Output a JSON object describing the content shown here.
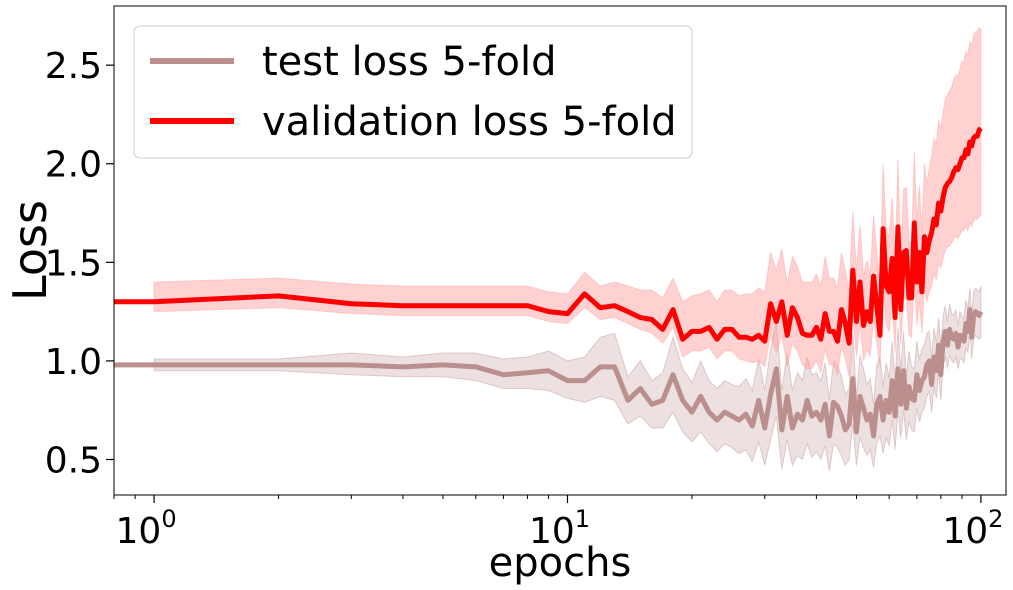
{
  "chart_data": {
    "type": "line",
    "title": "",
    "xlabel": "epochs",
    "ylabel": "Loss",
    "xscale": "log",
    "xlim": [
      0.8,
      115
    ],
    "ylim": [
      0.32,
      2.8
    ],
    "x_major_ticks": [
      {
        "value": 1,
        "base": "10",
        "exp": "0"
      },
      {
        "value": 10,
        "base": "10",
        "exp": "1"
      },
      {
        "value": 100,
        "base": "10",
        "exp": "2"
      }
    ],
    "y_ticks": [
      {
        "value": 0.5,
        "label": "0.5"
      },
      {
        "value": 1.0,
        "label": "1.0"
      },
      {
        "value": 1.5,
        "label": "1.5"
      },
      {
        "value": 2.0,
        "label": "2.0"
      },
      {
        "value": 2.5,
        "label": "2.5"
      }
    ],
    "grid": false,
    "legend_position": "top-left",
    "x": [
      1,
      2,
      3,
      4,
      5,
      6,
      7,
      8,
      9,
      10,
      11,
      12,
      13,
      14,
      15,
      16,
      17,
      18,
      19,
      20,
      21,
      22,
      23,
      24,
      25,
      26,
      27,
      28,
      29,
      30,
      31,
      32,
      33,
      34,
      35,
      36,
      37,
      38,
      39,
      40,
      41,
      42,
      43,
      44,
      45,
      46,
      47,
      48,
      49,
      50,
      51,
      52,
      53,
      54,
      55,
      56,
      57,
      58,
      59,
      60,
      61,
      62,
      63,
      64,
      65,
      66,
      67,
      68,
      69,
      70,
      71,
      72,
      73,
      74,
      75,
      76,
      77,
      78,
      79,
      80,
      81,
      82,
      83,
      84,
      85,
      86,
      87,
      88,
      89,
      90,
      91,
      92,
      93,
      94,
      95,
      96,
      97,
      98,
      99,
      100
    ],
    "series": [
      {
        "name": "test loss 5-fold",
        "color": "#bc8f8f",
        "band_color": "#bc8f8f",
        "values": [
          0.98,
          0.98,
          0.98,
          0.97,
          0.98,
          0.97,
          0.93,
          0.94,
          0.95,
          0.9,
          0.9,
          0.97,
          0.97,
          0.8,
          0.86,
          0.78,
          0.8,
          0.93,
          0.8,
          0.74,
          0.82,
          0.74,
          0.7,
          0.74,
          0.72,
          0.7,
          0.73,
          0.67,
          0.8,
          0.66,
          0.83,
          0.96,
          0.65,
          0.82,
          0.66,
          0.73,
          0.7,
          0.8,
          0.72,
          0.74,
          0.7,
          0.78,
          0.62,
          0.79,
          0.77,
          0.72,
          0.65,
          0.68,
          0.91,
          0.64,
          0.82,
          0.76,
          0.7,
          0.73,
          0.62,
          0.78,
          0.82,
          0.7,
          0.8,
          0.74,
          0.9,
          0.72,
          0.96,
          0.78,
          0.95,
          0.76,
          0.87,
          0.81,
          0.8,
          0.93,
          0.85,
          0.9,
          0.92,
          0.98,
          1.0,
          0.88,
          1.02,
          0.95,
          1.08,
          0.93,
          1.1,
          1.15,
          1.08,
          1.16,
          1.12,
          1.11,
          1.14,
          1.07,
          1.13,
          1.12,
          1.1,
          1.19,
          1.15,
          1.26,
          1.12,
          1.23,
          1.25,
          1.24,
          1.23,
          1.25
        ],
        "lower": [
          0.95,
          0.95,
          0.93,
          0.92,
          0.92,
          0.9,
          0.86,
          0.86,
          0.85,
          0.81,
          0.79,
          0.82,
          0.8,
          0.68,
          0.72,
          0.66,
          0.66,
          0.74,
          0.64,
          0.59,
          0.64,
          0.58,
          0.54,
          0.58,
          0.56,
          0.53,
          0.55,
          0.49,
          0.59,
          0.47,
          0.6,
          0.72,
          0.45,
          0.6,
          0.47,
          0.52,
          0.5,
          0.58,
          0.51,
          0.54,
          0.5,
          0.57,
          0.44,
          0.58,
          0.56,
          0.52,
          0.47,
          0.5,
          0.68,
          0.47,
          0.61,
          0.56,
          0.52,
          0.55,
          0.46,
          0.58,
          0.62,
          0.53,
          0.61,
          0.57,
          0.7,
          0.55,
          0.75,
          0.61,
          0.75,
          0.6,
          0.69,
          0.65,
          0.64,
          0.76,
          0.69,
          0.74,
          0.76,
          0.82,
          0.85,
          0.74,
          0.87,
          0.81,
          0.94,
          0.8,
          0.97,
          1.02,
          0.96,
          1.03,
          1.0,
          0.99,
          1.02,
          0.96,
          1.01,
          1.01,
          0.99,
          1.07,
          1.04,
          1.15,
          1.01,
          1.11,
          1.13,
          1.12,
          1.11,
          1.12
        ],
        "upper": [
          1.01,
          1.01,
          1.04,
          1.02,
          1.04,
          1.04,
          1.01,
          1.02,
          1.05,
          1.0,
          1.02,
          1.12,
          1.14,
          0.92,
          1.0,
          0.9,
          0.94,
          1.12,
          0.96,
          0.89,
          1.0,
          0.9,
          0.86,
          0.9,
          0.88,
          0.87,
          0.91,
          0.85,
          1.01,
          0.85,
          1.06,
          1.2,
          0.85,
          1.04,
          0.85,
          0.94,
          0.9,
          1.02,
          0.93,
          0.94,
          0.9,
          0.99,
          0.8,
          1.0,
          0.98,
          0.92,
          0.83,
          0.86,
          1.14,
          0.81,
          1.03,
          0.96,
          0.88,
          0.91,
          0.78,
          0.98,
          1.02,
          0.87,
          0.99,
          0.91,
          1.1,
          0.89,
          1.17,
          0.95,
          1.15,
          0.92,
          1.05,
          0.97,
          0.96,
          1.1,
          1.01,
          1.06,
          1.08,
          1.14,
          1.15,
          1.02,
          1.17,
          1.09,
          1.22,
          1.06,
          1.23,
          1.28,
          1.2,
          1.29,
          1.24,
          1.23,
          1.26,
          1.18,
          1.25,
          1.23,
          1.21,
          1.31,
          1.26,
          1.37,
          1.23,
          1.35,
          1.37,
          1.36,
          1.35,
          1.38
        ]
      },
      {
        "name": "validation loss 5-fold",
        "color": "#ff0000",
        "band_color": "#ff9a9a",
        "values": [
          1.3,
          1.33,
          1.29,
          1.28,
          1.28,
          1.28,
          1.28,
          1.28,
          1.25,
          1.24,
          1.34,
          1.27,
          1.28,
          1.25,
          1.22,
          1.21,
          1.16,
          1.26,
          1.11,
          1.15,
          1.15,
          1.17,
          1.11,
          1.16,
          1.16,
          1.12,
          1.12,
          1.11,
          1.13,
          1.1,
          1.29,
          1.2,
          1.3,
          1.13,
          1.27,
          1.22,
          1.14,
          1.13,
          1.13,
          1.17,
          1.11,
          1.24,
          1.15,
          1.15,
          1.1,
          1.26,
          1.19,
          1.09,
          1.46,
          1.2,
          1.4,
          1.18,
          1.25,
          1.2,
          1.43,
          1.28,
          1.13,
          1.67,
          1.38,
          1.35,
          1.52,
          1.22,
          1.68,
          1.26,
          1.55,
          1.56,
          1.32,
          1.32,
          1.7,
          1.4,
          1.55,
          1.35,
          1.63,
          1.55,
          1.61,
          1.65,
          1.72,
          1.69,
          1.8,
          1.76,
          1.83,
          1.88,
          1.9,
          1.91,
          1.93,
          1.96,
          1.98,
          1.97,
          2.0,
          2.03,
          2.03,
          2.07,
          2.05,
          2.11,
          2.09,
          2.13,
          2.14,
          2.14,
          2.17,
          2.18
        ],
        "lower": [
          1.25,
          1.27,
          1.24,
          1.23,
          1.23,
          1.23,
          1.23,
          1.23,
          1.2,
          1.19,
          1.27,
          1.21,
          1.22,
          1.19,
          1.16,
          1.14,
          1.09,
          1.17,
          1.02,
          1.05,
          1.05,
          1.07,
          1.01,
          1.05,
          1.05,
          1.01,
          1.0,
          0.99,
          1.0,
          0.97,
          1.13,
          1.04,
          1.13,
          0.97,
          1.09,
          1.05,
          0.98,
          0.96,
          0.96,
          1.0,
          0.94,
          1.06,
          0.98,
          0.98,
          0.93,
          1.07,
          1.01,
          0.92,
          1.24,
          1.02,
          1.19,
          1.0,
          1.06,
          1.02,
          1.21,
          1.09,
          0.97,
          1.42,
          1.18,
          1.15,
          1.3,
          1.04,
          1.43,
          1.08,
          1.32,
          1.32,
          1.13,
          1.12,
          1.43,
          1.18,
          1.3,
          1.14,
          1.36,
          1.3,
          1.35,
          1.38,
          1.44,
          1.41,
          1.5,
          1.47,
          1.52,
          1.56,
          1.58,
          1.58,
          1.6,
          1.62,
          1.63,
          1.62,
          1.64,
          1.66,
          1.66,
          1.68,
          1.66,
          1.7,
          1.68,
          1.71,
          1.72,
          1.72,
          1.73,
          1.74
        ],
        "upper": [
          1.4,
          1.42,
          1.39,
          1.38,
          1.38,
          1.38,
          1.38,
          1.38,
          1.35,
          1.34,
          1.45,
          1.38,
          1.4,
          1.38,
          1.36,
          1.36,
          1.32,
          1.42,
          1.3,
          1.33,
          1.34,
          1.36,
          1.3,
          1.36,
          1.36,
          1.33,
          1.34,
          1.34,
          1.37,
          1.35,
          1.55,
          1.46,
          1.57,
          1.39,
          1.53,
          1.48,
          1.4,
          1.4,
          1.4,
          1.44,
          1.38,
          1.53,
          1.42,
          1.42,
          1.37,
          1.55,
          1.46,
          1.35,
          1.76,
          1.46,
          1.69,
          1.43,
          1.51,
          1.44,
          1.74,
          1.55,
          1.38,
          2.0,
          1.67,
          1.63,
          1.83,
          1.48,
          2.02,
          1.53,
          1.87,
          1.88,
          1.6,
          1.6,
          2.06,
          1.71,
          1.89,
          1.65,
          2.0,
          1.9,
          1.98,
          2.04,
          2.13,
          2.1,
          2.22,
          2.18,
          2.26,
          2.33,
          2.35,
          2.37,
          2.39,
          2.43,
          2.45,
          2.44,
          2.48,
          2.52,
          2.52,
          2.57,
          2.55,
          2.62,
          2.6,
          2.65,
          2.67,
          2.67,
          2.69,
          2.68
        ]
      }
    ]
  }
}
